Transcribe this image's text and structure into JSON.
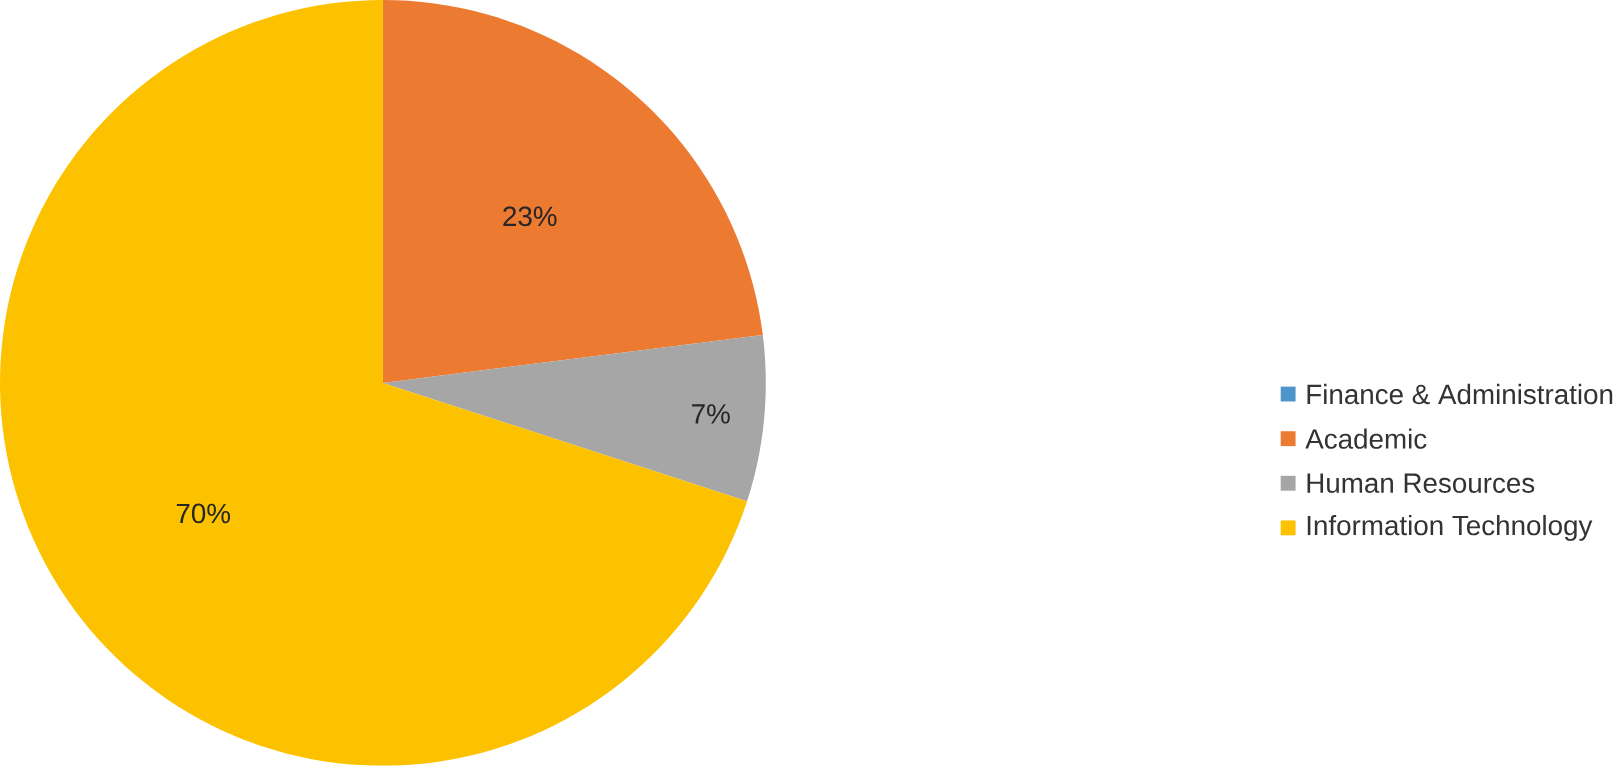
{
  "chart_data": {
    "type": "pie",
    "categories": [
      "Finance & Administration",
      "Academic",
      "Human Resources",
      "Information Technology"
    ],
    "values": [
      0,
      23,
      7,
      70
    ],
    "colors": [
      "#4e95cc",
      "#ec7a31",
      "#a6a6a6",
      "#fcc200"
    ],
    "value_labels": [
      null,
      "23%",
      "7%",
      "70%"
    ],
    "legend": "right"
  }
}
